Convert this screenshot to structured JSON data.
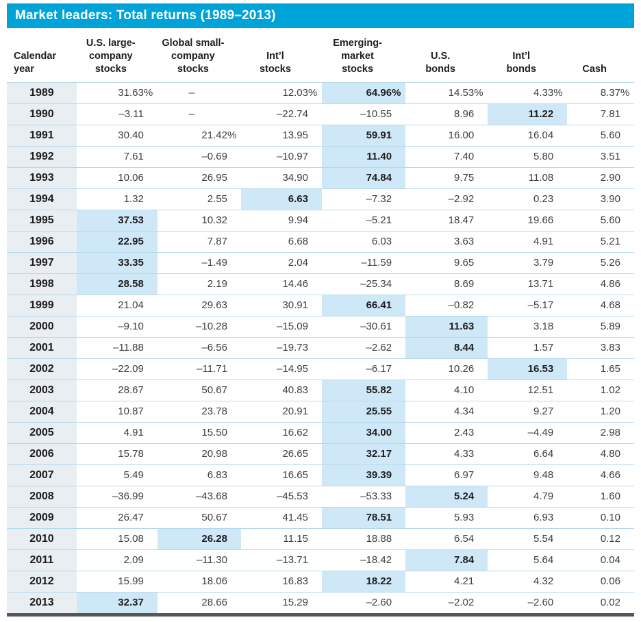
{
  "colors": {
    "accent": "#00a3d7",
    "highlight": "#cfe8f8",
    "year_bg": "#e9eef2",
    "separator": "#b6d8ec",
    "footer_bar": "#54565a"
  },
  "chart_data": {
    "type": "table",
    "title": "Market leaders: Total returns (1989–2013)",
    "columns": [
      "Calendar\nyear",
      "U.S. large-\ncompany\nstocks",
      "Global small-\ncompany\nstocks",
      "Int’l\nstocks",
      "Emerging-\nmarket\nstocks",
      "U.S.\nbonds",
      "Int’l\nbonds",
      "Cash"
    ],
    "highlight_note": "light-blue bold cell marks the highest return in each year row",
    "rows": [
      {
        "year": "1989",
        "values": [
          "31.63%",
          "–",
          "12.03%",
          "64.96%",
          "14.53%",
          "4.33%",
          "8.37%"
        ],
        "leader": 3
      },
      {
        "year": "1990",
        "values": [
          "-3.11",
          "–",
          "-22.74",
          "-10.55",
          "8.96",
          "11.22",
          "7.81"
        ],
        "leader": 5
      },
      {
        "year": "1991",
        "values": [
          "30.40",
          "21.42%",
          "13.95",
          "59.91",
          "16.00",
          "16.04",
          "5.60"
        ],
        "leader": 3
      },
      {
        "year": "1992",
        "values": [
          "7.61",
          "-0.69",
          "-10.97",
          "11.40",
          "7.40",
          "5.80",
          "3.51"
        ],
        "leader": 3
      },
      {
        "year": "1993",
        "values": [
          "10.06",
          "26.95",
          "34.90",
          "74.84",
          "9.75",
          "11.08",
          "2.90"
        ],
        "leader": 3
      },
      {
        "year": "1994",
        "values": [
          "1.32",
          "2.55",
          "6.63",
          "-7.32",
          "-2.92",
          "0.23",
          "3.90"
        ],
        "leader": 2
      },
      {
        "year": "1995",
        "values": [
          "37.53",
          "10.32",
          "9.94",
          "-5.21",
          "18.47",
          "19.66",
          "5.60"
        ],
        "leader": 0
      },
      {
        "year": "1996",
        "values": [
          "22.95",
          "7.87",
          "6.68",
          "6.03",
          "3.63",
          "4.91",
          "5.21"
        ],
        "leader": 0
      },
      {
        "year": "1997",
        "values": [
          "33.35",
          "-1.49",
          "2.04",
          "-11.59",
          "9.65",
          "3.79",
          "5.26"
        ],
        "leader": 0
      },
      {
        "year": "1998",
        "values": [
          "28.58",
          "2.19",
          "14.46",
          "-25.34",
          "8.69",
          "13.71",
          "4.86"
        ],
        "leader": 0
      },
      {
        "year": "1999",
        "values": [
          "21.04",
          "29.63",
          "30.91",
          "66.41",
          "-0.82",
          "-5.17",
          "4.68"
        ],
        "leader": 3
      },
      {
        "year": "2000",
        "values": [
          "-9.10",
          "-10.28",
          "-15.09",
          "-30.61",
          "11.63",
          "3.18",
          "5.89"
        ],
        "leader": 4
      },
      {
        "year": "2001",
        "values": [
          "-11.88",
          "-6.56",
          "-19.73",
          "-2.62",
          "8.44",
          "1.57",
          "3.83"
        ],
        "leader": 4
      },
      {
        "year": "2002",
        "values": [
          "-22.09",
          "-11.71",
          "-14.95",
          "-6.17",
          "10.26",
          "16.53",
          "1.65"
        ],
        "leader": 5
      },
      {
        "year": "2003",
        "values": [
          "28.67",
          "50.67",
          "40.83",
          "55.82",
          "4.10",
          "12.51",
          "1.02"
        ],
        "leader": 3
      },
      {
        "year": "2004",
        "values": [
          "10.87",
          "23.78",
          "20.91",
          "25.55",
          "4.34",
          "9.27",
          "1.20"
        ],
        "leader": 3
      },
      {
        "year": "2005",
        "values": [
          "4.91",
          "15.50",
          "16.62",
          "34.00",
          "2.43",
          "-4.49",
          "2.98"
        ],
        "leader": 3
      },
      {
        "year": "2006",
        "values": [
          "15.78",
          "20.98",
          "26.65",
          "32.17",
          "4.33",
          "6.64",
          "4.80"
        ],
        "leader": 3
      },
      {
        "year": "2007",
        "values": [
          "5.49",
          "6.83",
          "16.65",
          "39.39",
          "6.97",
          "9.48",
          "4.66"
        ],
        "leader": 3
      },
      {
        "year": "2008",
        "values": [
          "-36.99",
          "-43.68",
          "-45.53",
          "-53.33",
          "5.24",
          "4.79",
          "1.60"
        ],
        "leader": 4
      },
      {
        "year": "2009",
        "values": [
          "26.47",
          "50.67",
          "41.45",
          "78.51",
          "5.93",
          "6.93",
          "0.10"
        ],
        "leader": 3
      },
      {
        "year": "2010",
        "values": [
          "15.08",
          "26.28",
          "11.15",
          "18.88",
          "6.54",
          "5.54",
          "0.12"
        ],
        "leader": 1
      },
      {
        "year": "2011",
        "values": [
          "2.09",
          "-11.30",
          "-13.71",
          "-18.42",
          "7.84",
          "5.64",
          "0.04"
        ],
        "leader": 4
      },
      {
        "year": "2012",
        "values": [
          "15.99",
          "18.06",
          "16.83",
          "18.22",
          "4.21",
          "4.32",
          "0.06"
        ],
        "leader": 3
      },
      {
        "year": "2013",
        "values": [
          "32.37",
          "28.66",
          "15.29",
          "-2.60",
          "-2.02",
          "-2.60",
          "0.02"
        ],
        "leader": 0
      }
    ]
  }
}
